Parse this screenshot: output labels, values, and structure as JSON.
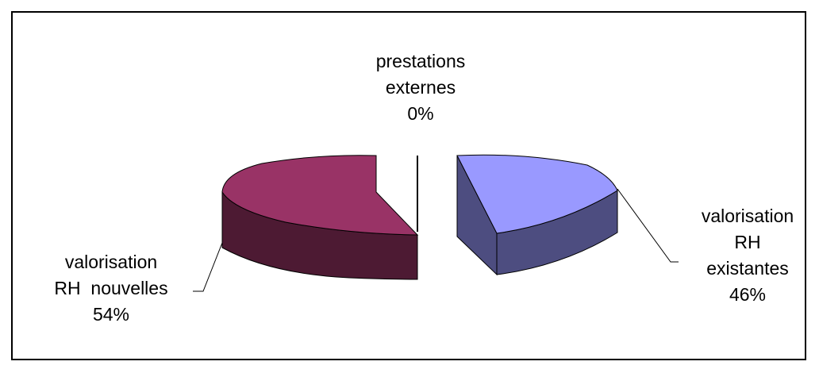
{
  "chart_data": {
    "type": "pie",
    "style": "3d-exploded",
    "categories": [
      "valorisation RH existantes",
      "prestations externes",
      "valorisation RH nouvelles"
    ],
    "values": [
      46,
      0,
      54
    ],
    "colors": [
      "#9999ff",
      "#000000",
      "#993366"
    ],
    "legend": "none",
    "labels": [
      {
        "lines": [
          "valorisation",
          "RH",
          "existantes"
        ],
        "pct": "46%"
      },
      {
        "lines": [
          "prestations",
          "externes"
        ],
        "pct": "0%"
      },
      {
        "lines": [
          "valorisation",
          "RH  nouvelles"
        ],
        "pct": "54%"
      }
    ]
  }
}
